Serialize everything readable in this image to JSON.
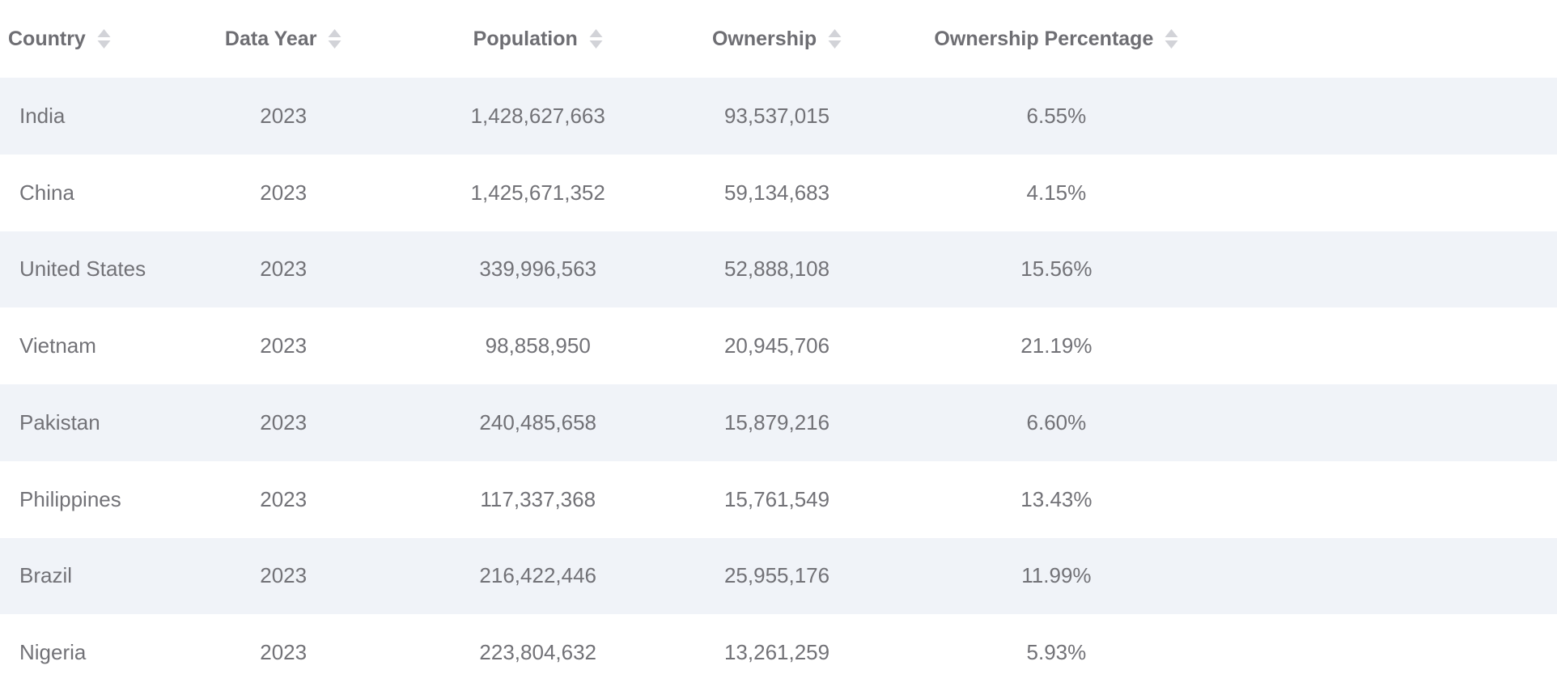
{
  "colors": {
    "stripe_background": "#f0f3f8",
    "header_text": "#6e6e73",
    "cell_text": "#727277",
    "sort_icon": "#d2d3d8"
  },
  "table": {
    "columns": [
      {
        "label": "Country",
        "sort_icon": "sort-arrows"
      },
      {
        "label": "Data Year",
        "sort_icon": "sort-arrows"
      },
      {
        "label": "Population",
        "sort_icon": "sort-arrows"
      },
      {
        "label": "Ownership",
        "sort_icon": "sort-arrows"
      },
      {
        "label": "Ownership Percentage",
        "sort_icon": "sort-arrows"
      }
    ],
    "cell_keys": [
      "country",
      "data_year",
      "population",
      "ownership",
      "ownership_percentage"
    ],
    "rows": [
      {
        "country": "India",
        "data_year": "2023",
        "population": "1,428,627,663",
        "ownership": "93,537,015",
        "ownership_percentage": "6.55%"
      },
      {
        "country": "China",
        "data_year": "2023",
        "population": "1,425,671,352",
        "ownership": "59,134,683",
        "ownership_percentage": "4.15%"
      },
      {
        "country": "United States",
        "data_year": "2023",
        "population": "339,996,563",
        "ownership": "52,888,108",
        "ownership_percentage": "15.56%"
      },
      {
        "country": "Vietnam",
        "data_year": "2023",
        "population": "98,858,950",
        "ownership": "20,945,706",
        "ownership_percentage": "21.19%"
      },
      {
        "country": "Pakistan",
        "data_year": "2023",
        "population": "240,485,658",
        "ownership": "15,879,216",
        "ownership_percentage": "6.60%"
      },
      {
        "country": "Philippines",
        "data_year": "2023",
        "population": "117,337,368",
        "ownership": "15,761,549",
        "ownership_percentage": "13.43%"
      },
      {
        "country": "Brazil",
        "data_year": "2023",
        "population": "216,422,446",
        "ownership": "25,955,176",
        "ownership_percentage": "11.99%"
      },
      {
        "country": "Nigeria",
        "data_year": "2023",
        "population": "223,804,632",
        "ownership": "13,261,259",
        "ownership_percentage": "5.93%"
      }
    ]
  }
}
